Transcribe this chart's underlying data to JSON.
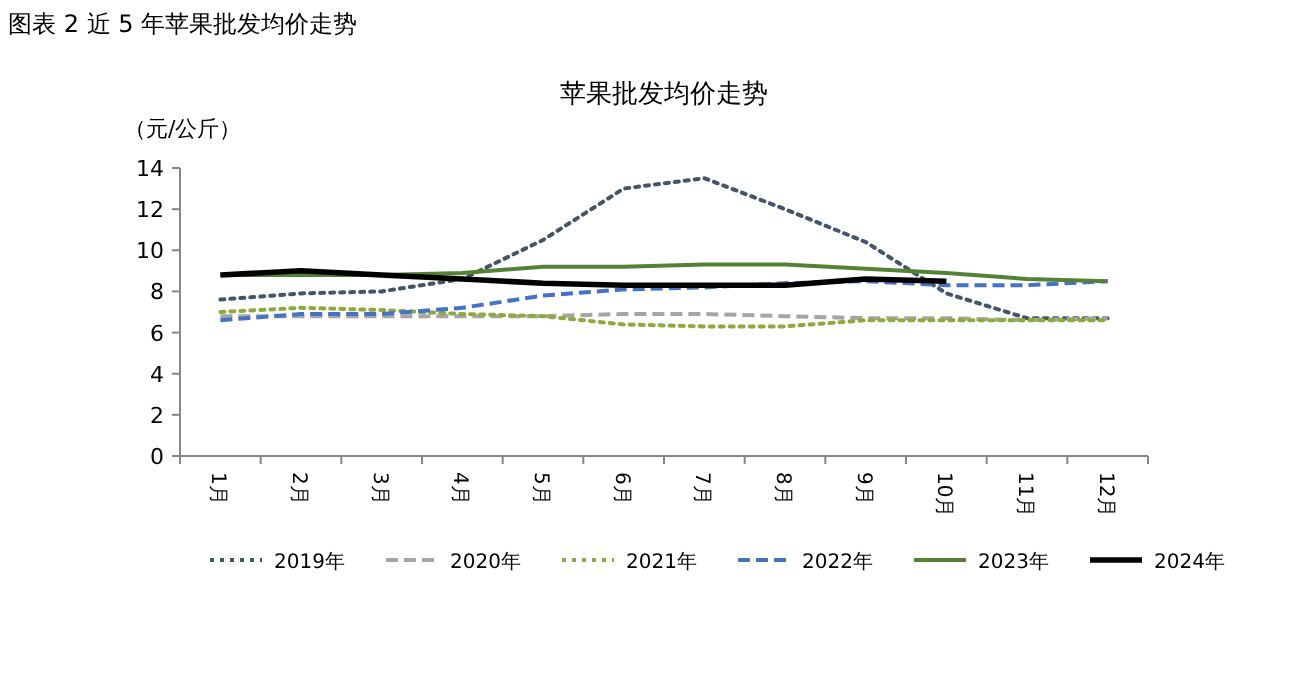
{
  "chart_data": {
    "type": "line",
    "title": "图表 2 近 5 年苹果批发均价走势",
    "subtitle": "苹果批发均价走势",
    "ylabel": "（元/公斤）",
    "categories": [
      "1月",
      "2月",
      "3月",
      "4月",
      "5月",
      "6月",
      "7月",
      "8月",
      "9月",
      "10月",
      "11月",
      "12月"
    ],
    "ylim": [
      0,
      14
    ],
    "yticks": [
      0,
      2,
      4,
      6,
      8,
      10,
      12,
      14
    ],
    "legend": "bottom",
    "grid": false,
    "series": [
      {
        "name": "2019年",
        "color": "#44546a",
        "line_style": "dotted",
        "values": [
          7.6,
          7.9,
          8.0,
          8.6,
          10.5,
          13.0,
          13.5,
          12.0,
          10.4,
          7.9,
          6.7,
          6.7
        ]
      },
      {
        "name": "2020年",
        "color": "#a5a5a5",
        "line_style": "dashed",
        "values": [
          6.8,
          6.8,
          6.8,
          6.8,
          6.8,
          6.9,
          6.9,
          6.8,
          6.7,
          6.7,
          6.6,
          6.7
        ]
      },
      {
        "name": "2021年",
        "color": "#8faa3c",
        "line_style": "dotted",
        "values": [
          7.0,
          7.2,
          7.1,
          6.9,
          6.8,
          6.4,
          6.3,
          6.3,
          6.6,
          6.6,
          6.6,
          6.6
        ]
      },
      {
        "name": "2022年",
        "color": "#4472c4",
        "line_style": "dashed",
        "values": [
          6.6,
          6.9,
          6.9,
          7.2,
          7.8,
          8.1,
          8.2,
          8.4,
          8.5,
          8.3,
          8.3,
          8.5
        ]
      },
      {
        "name": "2023年",
        "color": "#548235",
        "line_style": "solid",
        "values": [
          8.8,
          8.8,
          8.8,
          8.9,
          9.2,
          9.2,
          9.3,
          9.3,
          9.1,
          8.9,
          8.6,
          8.5
        ]
      },
      {
        "name": "2024年",
        "color": "#000000",
        "line_style": "solid",
        "values": [
          8.8,
          9.0,
          8.8,
          8.6,
          8.4,
          8.3,
          8.3,
          8.3,
          8.6,
          8.5,
          null,
          null
        ]
      }
    ]
  }
}
